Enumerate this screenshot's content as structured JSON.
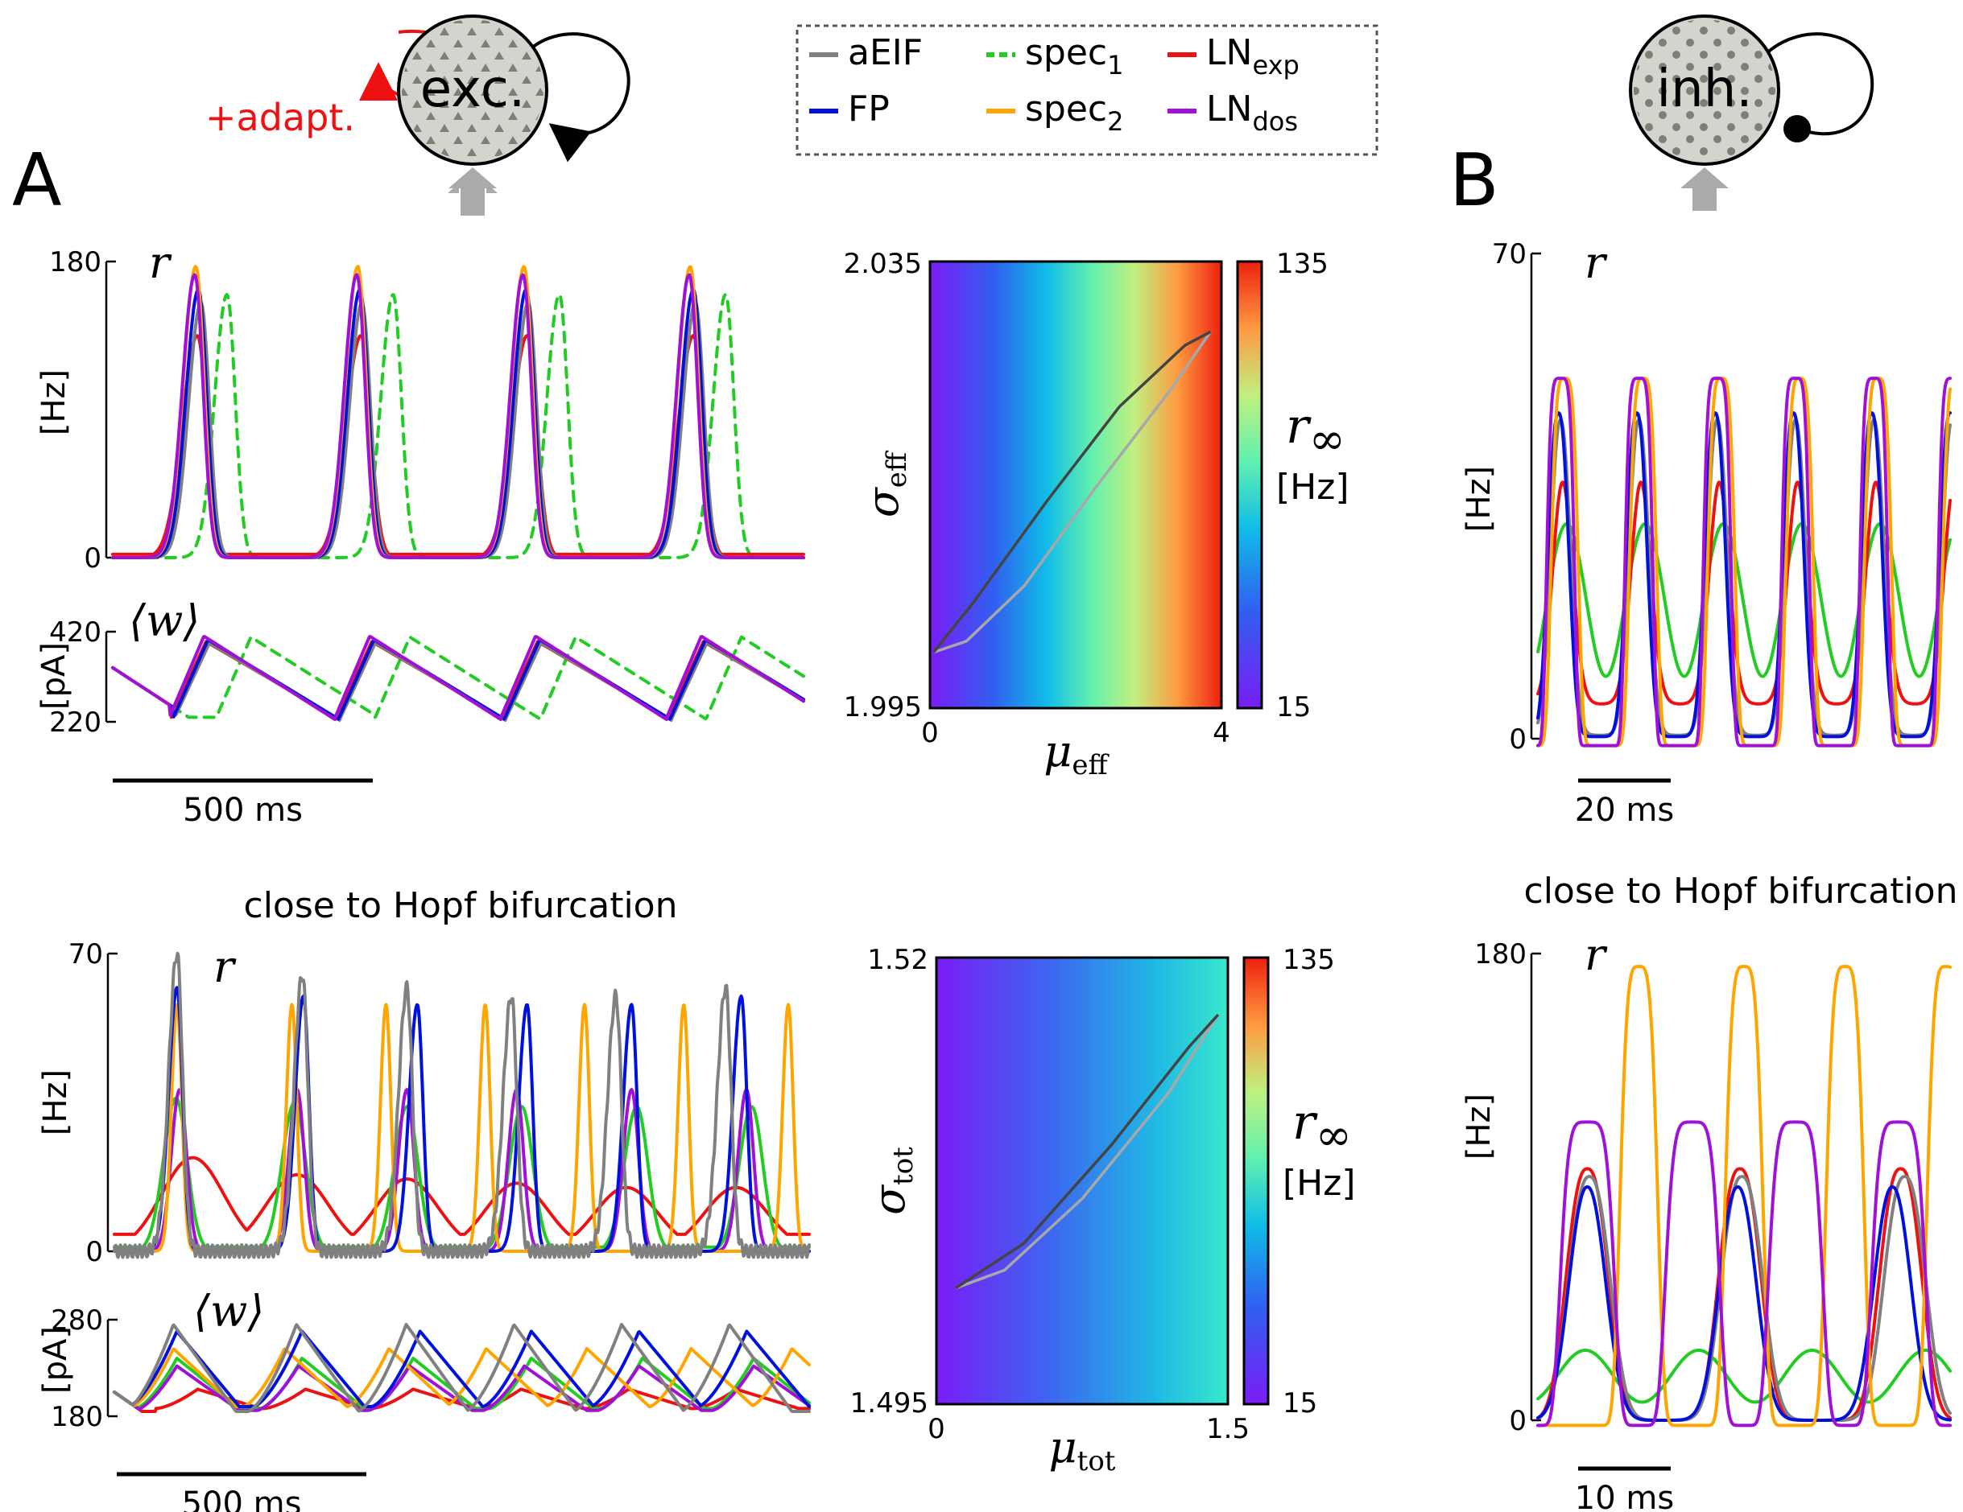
{
  "colors": {
    "aEIF": "#808080",
    "FP": "#0010dd",
    "spec1": "#22cc22",
    "spec2": "#ffa500",
    "LN_exp": "#ee1111",
    "LN_dos": "#a010d8",
    "adapt": "#ee1111",
    "neuron_fill": "#d4d4cf",
    "neuron_dot": "#7f7f74",
    "input_arrow": "#aaaaaa"
  },
  "labels": {
    "panel_A": "A",
    "panel_B": "B",
    "exc_neuron": "exc.",
    "inh_neuron": "inh.",
    "adapt": "+adapt.",
    "hopf_A": "close to Hopf bifurcation",
    "hopf_B": "close to Hopf bifurcation",
    "r_sym": "r",
    "w_sym": "⟨w⟩",
    "hz_unit": "[Hz]",
    "pa_unit": "[pA]",
    "r_inf": "r",
    "r_inf_sub": "∞",
    "mu": "μ",
    "sigma": "σ",
    "eff": "eff",
    "tot": "tot"
  },
  "legend": [
    {
      "name": "aEIF",
      "sub": "",
      "color": "#808080",
      "dashed": false
    },
    {
      "name": "FP",
      "sub": "",
      "color": "#0010dd",
      "dashed": false
    },
    {
      "name": "spec",
      "sub": "1",
      "color": "#22cc22",
      "dashed": true
    },
    {
      "name": "spec",
      "sub": "2",
      "color": "#ffa500",
      "dashed": false
    },
    {
      "name": "LN",
      "sub": "exp",
      "color": "#ee1111",
      "dashed": false
    },
    {
      "name": "LN",
      "sub": "dos",
      "color": "#a010d8",
      "dashed": false
    }
  ],
  "chart_data": [
    {
      "id": "A_top_rate",
      "type": "line",
      "ylabel": "[Hz]",
      "symbol": "r",
      "ylim": [
        0,
        180
      ],
      "yticks": [
        "180",
        "0"
      ],
      "scalebar": "500 ms",
      "series": [
        {
          "name": "spec1",
          "style": "dashed",
          "peak_times_ms": [
            220,
            540,
            860,
            1180
          ],
          "peak_values": [
            160,
            160,
            160,
            160
          ]
        },
        {
          "name": "spec2",
          "peak_times_ms": [
            160,
            472,
            792,
            1112
          ],
          "peak_values": [
            177,
            177,
            177,
            177
          ]
        },
        {
          "name": "LN_dos",
          "peak_times_ms": [
            158,
            470,
            790,
            1110
          ],
          "peak_values": [
            172,
            172,
            172,
            172
          ]
        },
        {
          "name": "FP",
          "peak_times_ms": [
            165,
            476,
            796,
            1118
          ],
          "peak_values": [
            163,
            163,
            163,
            163
          ]
        },
        {
          "name": "aEIF",
          "peak_times_ms": [
            170,
            480,
            800,
            1122
          ],
          "peak_values": [
            155,
            155,
            155,
            155
          ]
        },
        {
          "name": "LN_exp",
          "peak_times_ms": [
            163,
            478,
            798,
            1118
          ],
          "peak_values": [
            135,
            135,
            135,
            135
          ]
        }
      ]
    },
    {
      "id": "A_top_adapt",
      "type": "line",
      "ylabel": "[pA]",
      "symbol": "⟨w⟩",
      "ylim": [
        220,
        420
      ],
      "yticks": [
        "420",
        "220"
      ],
      "series_note": "sawtooth adaptation current, peaks ~410 pA after each rate burst, troughs ~225 pA"
    },
    {
      "id": "A_top_heatmap",
      "type": "heatmap",
      "xlabel": "μeff",
      "ylabel": "σeff",
      "xlim": [
        0,
        4
      ],
      "ylim": [
        1.995,
        2.035
      ],
      "xticks": [
        "0",
        "4"
      ],
      "yticks": [
        "2.035",
        "1.995"
      ],
      "colorbar": {
        "label": "r∞ [Hz]",
        "min": 15,
        "max": 135,
        "ticks": [
          "135",
          "15"
        ]
      },
      "trajectory": [
        [
          0.05,
          2.0
        ],
        [
          0.6,
          2.0045
        ],
        [
          1.6,
          2.0135
        ],
        [
          2.6,
          2.022
        ],
        [
          3.5,
          2.0275
        ],
        [
          3.85,
          2.0287
        ],
        [
          3.3,
          2.0235
        ],
        [
          2.3,
          2.015
        ],
        [
          1.3,
          2.006
        ],
        [
          0.5,
          2.001
        ],
        [
          0.05,
          2.0
        ]
      ]
    },
    {
      "id": "A_bottom_rate",
      "type": "line",
      "ylabel": "[Hz]",
      "symbol": "r",
      "ylim": [
        0,
        70
      ],
      "yticks": [
        "70",
        "0"
      ],
      "scalebar": "500 ms",
      "series": [
        {
          "name": "aEIF",
          "peak_times_ms": [
            120,
            360,
            560,
            760,
            960,
            1170
          ],
          "peak_values": [
            70,
            65,
            62,
            60,
            60,
            62
          ]
        },
        {
          "name": "FP",
          "peak_times_ms": [
            120,
            362,
            580,
            790,
            990,
            1200
          ],
          "peak_values": [
            62,
            60,
            58,
            58,
            58,
            60
          ]
        },
        {
          "name": "spec2",
          "peak_times_ms": [
            120,
            340,
            520,
            710,
            900,
            1090,
            1290
          ],
          "peak_values": [
            58,
            58,
            58,
            58,
            58,
            58,
            58
          ]
        },
        {
          "name": "LN_dos",
          "peak_times_ms": [
            125,
            350,
            560,
            770,
            990,
            1210
          ],
          "peak_values": [
            38,
            38,
            38,
            38,
            38,
            38
          ]
        },
        {
          "name": "spec1",
          "peak_times_ms": [
            118,
            345,
            560,
            780,
            1000,
            1220
          ],
          "peak_values": [
            36,
            35,
            34,
            34,
            34,
            34
          ]
        },
        {
          "name": "LN_exp",
          "peak_times_ms": [
            150,
            350,
            560,
            770,
            980,
            1190
          ],
          "peak_values": [
            22,
            18,
            17,
            16,
            15,
            15
          ]
        }
      ]
    },
    {
      "id": "A_bottom_adapt",
      "type": "line",
      "ylabel": "[pA]",
      "symbol": "⟨w⟩",
      "ylim": [
        180,
        280
      ],
      "yticks": [
        "280",
        "180"
      ]
    },
    {
      "id": "A_bottom_heatmap",
      "type": "heatmap",
      "xlabel": "μtot",
      "ylabel": "σtot",
      "xlim": [
        0,
        1.5
      ],
      "ylim": [
        1.495,
        1.52
      ],
      "xticks": [
        "0",
        "1.5"
      ],
      "yticks": [
        "1.52",
        "1.495"
      ],
      "colorbar": {
        "label": "r∞ [Hz]",
        "min": 15,
        "max": 135,
        "ticks": [
          "135",
          "15"
        ]
      },
      "trajectory": [
        [
          0.1,
          1.5015
        ],
        [
          0.45,
          1.504
        ],
        [
          0.9,
          1.5095
        ],
        [
          1.3,
          1.515
        ],
        [
          1.45,
          1.5168
        ],
        [
          1.2,
          1.5125
        ],
        [
          0.75,
          1.5065
        ],
        [
          0.35,
          1.5025
        ],
        [
          0.1,
          1.5015
        ]
      ]
    },
    {
      "id": "B_top_rate",
      "type": "line",
      "ylabel": "[Hz]",
      "symbol": "r",
      "ylim": [
        0,
        70
      ],
      "yticks": [
        "70",
        "0"
      ],
      "scalebar": "20 ms",
      "series": [
        {
          "name": "LN_dos",
          "peak_values": [
            52,
            52,
            52
          ]
        },
        {
          "name": "spec2",
          "peak_values": [
            52,
            52,
            52
          ]
        },
        {
          "name": "FP",
          "peak_values": [
            47,
            47,
            47
          ]
        },
        {
          "name": "aEIF",
          "peak_values": [
            46,
            46,
            46
          ]
        },
        {
          "name": "LN_exp",
          "peak_values": [
            37,
            37,
            37
          ]
        },
        {
          "name": "spec1",
          "peak_values": [
            31,
            31,
            31
          ]
        }
      ]
    },
    {
      "id": "B_bottom_rate",
      "type": "line",
      "ylabel": "[Hz]",
      "symbol": "r",
      "ylim": [
        0,
        180
      ],
      "yticks": [
        "180",
        "0"
      ],
      "scalebar": "10 ms",
      "series": [
        {
          "name": "spec2",
          "peak_values": [
            175,
            175,
            175,
            175
          ]
        },
        {
          "name": "LN_dos",
          "peak_values": [
            115,
            115,
            115,
            115
          ]
        },
        {
          "name": "LN_exp",
          "peak_values": [
            97,
            97,
            97
          ]
        },
        {
          "name": "aEIF",
          "peak_values": [
            94,
            94,
            94
          ]
        },
        {
          "name": "FP",
          "peak_values": [
            90,
            90,
            90
          ]
        },
        {
          "name": "spec1",
          "peak_values": [
            27,
            27,
            27
          ]
        }
      ]
    }
  ]
}
